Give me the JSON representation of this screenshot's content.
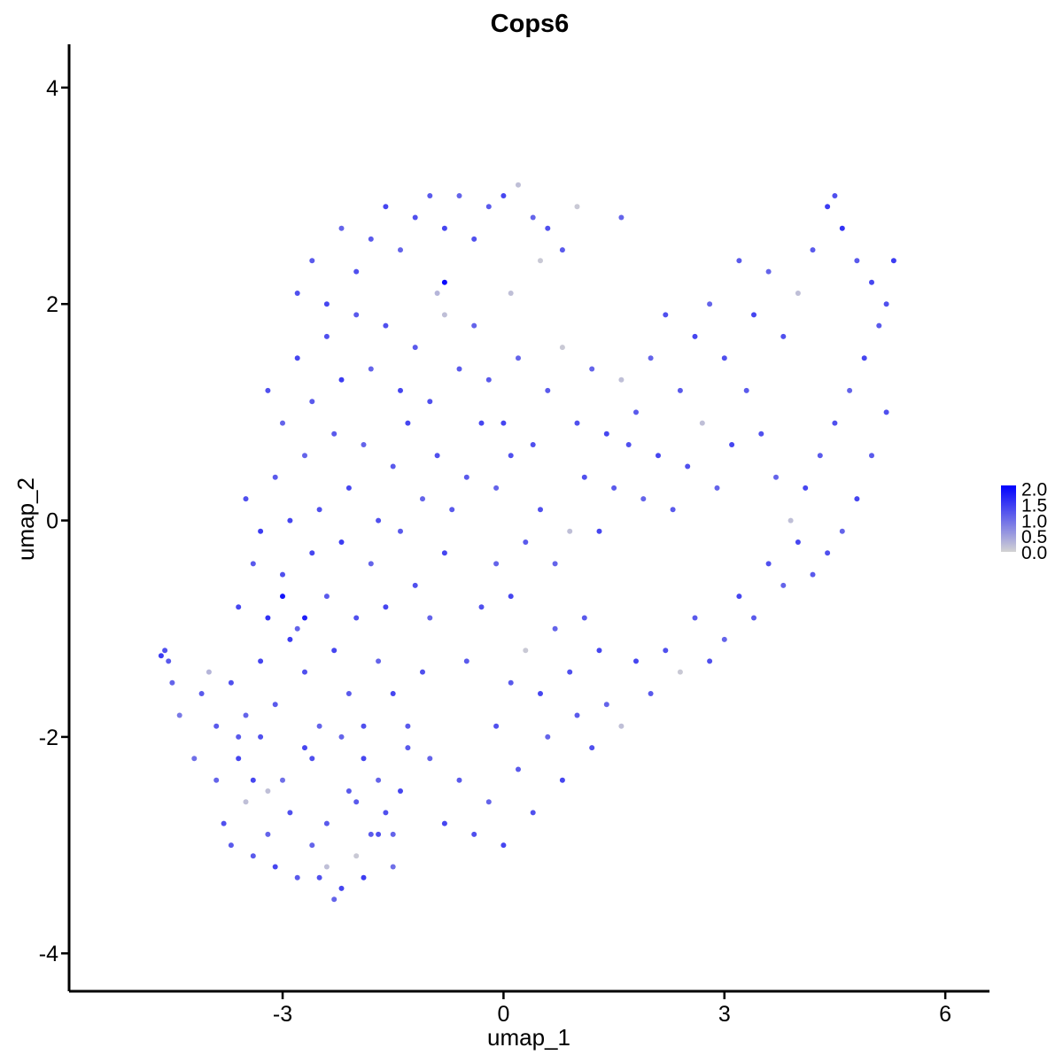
{
  "chart_data": {
    "type": "scatter",
    "title": "Cops6",
    "xlabel": "umap_1",
    "ylabel": "umap_2",
    "xlim": [
      -5.9,
      6.6
    ],
    "ylim": [
      -4.35,
      4.4
    ],
    "x_ticks": [
      -3,
      0,
      3,
      6
    ],
    "x_tick_labels": [
      "-3",
      "0",
      "3",
      "6"
    ],
    "y_ticks": [
      -4,
      -2,
      0,
      2,
      4
    ],
    "y_tick_labels": [
      "-4",
      "-2",
      "0",
      "2",
      "4"
    ],
    "grid": false,
    "color_scale": {
      "low_color": "#d3d3d3",
      "high_color": "#0000ff",
      "min": 0.0,
      "max": 2.1,
      "ticks": [
        0.0,
        0.5,
        1.0,
        1.5,
        2.0
      ],
      "tick_labels": [
        "0.0",
        "0.5",
        "1.0",
        "1.5",
        "2.0"
      ]
    },
    "legend_placement": "right",
    "series": [
      {
        "x_y_expression": [
          [
            -4.6,
            -1.2,
            1.3
          ],
          [
            -4.65,
            -1.25,
            1.5
          ],
          [
            -4.55,
            -1.3,
            1.2
          ],
          [
            -4.5,
            -1.5,
            1.1
          ],
          [
            -4.4,
            -1.8,
            0.9
          ],
          [
            -4.2,
            -2.2,
            1.0
          ],
          [
            -4.1,
            -1.6,
            1.2
          ],
          [
            -4.0,
            -1.4,
            0.3
          ],
          [
            -3.9,
            -2.4,
            1.1
          ],
          [
            -3.8,
            -2.8,
            1.3
          ],
          [
            -3.7,
            -3.0,
            1.2
          ],
          [
            -3.6,
            -2.2,
            1.4
          ],
          [
            -3.5,
            -2.6,
            0.2
          ],
          [
            -3.4,
            -3.1,
            1.2
          ],
          [
            -3.3,
            -2.0,
            1.3
          ],
          [
            -3.2,
            -2.9,
            1.1
          ],
          [
            -3.1,
            -3.2,
            1.4
          ],
          [
            -3.0,
            -2.4,
            1.0
          ],
          [
            -2.9,
            -2.7,
            1.3
          ],
          [
            -2.8,
            -3.3,
            1.2
          ],
          [
            -2.7,
            -2.1,
            1.4
          ],
          [
            -2.6,
            -3.0,
            1.1
          ],
          [
            -2.5,
            -3.3,
            1.3
          ],
          [
            -2.4,
            -2.8,
            1.2
          ],
          [
            -2.3,
            -3.5,
            1.1
          ],
          [
            -2.2,
            -3.4,
            1.4
          ],
          [
            -2.1,
            -2.5,
            1.2
          ],
          [
            -2.0,
            -3.1,
            0.1
          ],
          [
            -1.9,
            -3.3,
            1.5
          ],
          [
            -1.8,
            -2.9,
            1.2
          ],
          [
            -1.7,
            -2.4,
            1.1
          ],
          [
            -1.6,
            -2.7,
            1.3
          ],
          [
            -1.5,
            -3.2,
            1.0
          ],
          [
            -1.4,
            -2.5,
            1.4
          ],
          [
            -1.3,
            -2.1,
            1.2
          ],
          [
            -3.9,
            -1.9,
            1.2
          ],
          [
            -3.7,
            -1.5,
            1.3
          ],
          [
            -3.5,
            -1.8,
            1.1
          ],
          [
            -3.3,
            -1.3,
            1.4
          ],
          [
            -3.1,
            -1.7,
            1.2
          ],
          [
            -2.9,
            -1.1,
            1.5
          ],
          [
            -2.7,
            -1.4,
            1.3
          ],
          [
            -2.5,
            -1.9,
            1.1
          ],
          [
            -2.3,
            -1.2,
            1.4
          ],
          [
            -2.1,
            -1.6,
            1.2
          ],
          [
            -1.9,
            -1.9,
            1.3
          ],
          [
            -1.7,
            -1.3,
            1.1
          ],
          [
            -1.5,
            -1.6,
            1.4
          ],
          [
            -1.3,
            -1.9,
            1.2
          ],
          [
            -1.1,
            -1.4,
            1.3
          ],
          [
            -3.6,
            -0.8,
            1.4
          ],
          [
            -3.4,
            -0.4,
            1.2
          ],
          [
            -3.2,
            -0.9,
            1.6
          ],
          [
            -3.0,
            -0.5,
            1.3
          ],
          [
            -2.8,
            -1.0,
            1.1
          ],
          [
            -2.6,
            -0.3,
            1.4
          ],
          [
            -2.4,
            -0.7,
            1.2
          ],
          [
            -2.2,
            -0.2,
            1.5
          ],
          [
            -2.0,
            -0.9,
            1.3
          ],
          [
            -1.8,
            -0.4,
            1.1
          ],
          [
            -1.6,
            -0.8,
            1.4
          ],
          [
            -1.4,
            -0.1,
            1.2
          ],
          [
            -1.2,
            -0.6,
            1.3
          ],
          [
            -1.0,
            -0.9,
            1.1
          ],
          [
            -0.8,
            -0.3,
            1.4
          ],
          [
            -3.5,
            0.2,
            1.3
          ],
          [
            -3.3,
            -0.1,
            1.5
          ],
          [
            -3.1,
            0.4,
            1.2
          ],
          [
            -2.9,
            0.0,
            1.4
          ],
          [
            -2.7,
            0.6,
            1.1
          ],
          [
            -2.5,
            0.1,
            1.3
          ],
          [
            -2.3,
            0.8,
            1.2
          ],
          [
            -2.1,
            0.3,
            1.4
          ],
          [
            -1.9,
            0.7,
            1.1
          ],
          [
            -1.7,
            0.0,
            1.3
          ],
          [
            -1.5,
            0.5,
            1.2
          ],
          [
            -1.3,
            0.9,
            1.4
          ],
          [
            -1.1,
            0.2,
            1.1
          ],
          [
            -0.9,
            0.6,
            1.3
          ],
          [
            -0.7,
            0.1,
            1.2
          ],
          [
            -3.2,
            1.2,
            1.3
          ],
          [
            -3.0,
            0.9,
            1.1
          ],
          [
            -2.8,
            1.5,
            1.4
          ],
          [
            -2.6,
            1.1,
            1.2
          ],
          [
            -2.4,
            1.7,
            1.3
          ],
          [
            -2.2,
            1.3,
            1.5
          ],
          [
            -2.0,
            1.9,
            1.2
          ],
          [
            -1.8,
            1.4,
            1.1
          ],
          [
            -1.6,
            1.8,
            1.3
          ],
          [
            -1.4,
            1.2,
            1.4
          ],
          [
            -1.2,
            1.6,
            1.2
          ],
          [
            -1.0,
            1.1,
            1.3
          ],
          [
            -0.8,
            1.9,
            0.2
          ],
          [
            -0.6,
            1.4,
            1.2
          ],
          [
            -0.4,
            1.8,
            1.1
          ],
          [
            -2.8,
            2.1,
            1.3
          ],
          [
            -2.6,
            2.4,
            1.2
          ],
          [
            -2.4,
            2.0,
            1.4
          ],
          [
            -2.2,
            2.7,
            1.1
          ],
          [
            -2.0,
            2.3,
            1.3
          ],
          [
            -1.8,
            2.6,
            1.2
          ],
          [
            -1.6,
            2.9,
            1.4
          ],
          [
            -1.4,
            2.5,
            1.1
          ],
          [
            -1.2,
            2.8,
            1.3
          ],
          [
            -1.0,
            3.0,
            1.2
          ],
          [
            -0.8,
            2.7,
            1.4
          ],
          [
            -0.6,
            3.0,
            1.1
          ],
          [
            -0.4,
            2.6,
            1.3
          ],
          [
            -0.2,
            2.9,
            1.2
          ],
          [
            0.0,
            3.0,
            1.4
          ],
          [
            0.2,
            3.1,
            0.2
          ],
          [
            0.4,
            2.8,
            1.1
          ],
          [
            0.6,
            2.7,
            1.3
          ],
          [
            0.8,
            2.5,
            1.2
          ],
          [
            1.0,
            2.9,
            0.1
          ],
          [
            1.6,
            2.8,
            1.1
          ],
          [
            -0.8,
            2.2,
            2.0
          ],
          [
            -0.9,
            2.1,
            0.3
          ],
          [
            0.1,
            2.1,
            0.2
          ],
          [
            0.5,
            2.4,
            0.1
          ],
          [
            -0.2,
            1.3,
            1.2
          ],
          [
            0.0,
            0.9,
            1.4
          ],
          [
            0.2,
            1.5,
            1.1
          ],
          [
            0.4,
            0.7,
            1.3
          ],
          [
            0.6,
            1.2,
            1.2
          ],
          [
            0.8,
            1.6,
            0.1
          ],
          [
            1.0,
            0.9,
            1.3
          ],
          [
            1.2,
            1.4,
            1.1
          ],
          [
            1.4,
            0.8,
            1.4
          ],
          [
            1.6,
            1.3,
            0.2
          ],
          [
            1.8,
            1.0,
            1.2
          ],
          [
            2.0,
            1.5,
            1.1
          ],
          [
            2.2,
            1.9,
            1.3
          ],
          [
            2.4,
            1.2,
            1.2
          ],
          [
            2.6,
            1.7,
            1.4
          ],
          [
            2.8,
            2.0,
            1.1
          ],
          [
            3.0,
            1.5,
            1.3
          ],
          [
            3.2,
            2.4,
            1.2
          ],
          [
            3.4,
            1.9,
            1.4
          ],
          [
            3.6,
            2.3,
            1.1
          ],
          [
            3.8,
            1.7,
            1.3
          ],
          [
            4.0,
            2.1,
            0.2
          ],
          [
            4.2,
            2.5,
            1.2
          ],
          [
            4.4,
            2.9,
            1.5
          ],
          [
            4.5,
            3.0,
            1.3
          ],
          [
            4.6,
            2.7,
            1.6
          ],
          [
            4.8,
            2.4,
            1.2
          ],
          [
            5.0,
            2.2,
            1.4
          ],
          [
            5.2,
            2.0,
            1.3
          ],
          [
            5.3,
            2.4,
            1.5
          ],
          [
            5.1,
            1.8,
            1.2
          ],
          [
            4.9,
            1.5,
            1.4
          ],
          [
            4.7,
            1.2,
            1.1
          ],
          [
            4.5,
            0.9,
            1.3
          ],
          [
            4.3,
            0.6,
            1.2
          ],
          [
            4.1,
            0.3,
            1.4
          ],
          [
            3.9,
            0.0,
            0.2
          ],
          [
            3.7,
            0.4,
            1.1
          ],
          [
            3.5,
            0.8,
            1.3
          ],
          [
            3.3,
            1.2,
            1.2
          ],
          [
            3.1,
            0.7,
            1.4
          ],
          [
            2.9,
            0.3,
            1.1
          ],
          [
            2.7,
            0.9,
            0.2
          ],
          [
            2.5,
            0.5,
            1.3
          ],
          [
            2.3,
            0.1,
            1.2
          ],
          [
            2.1,
            0.6,
            1.4
          ],
          [
            1.9,
            0.2,
            1.1
          ],
          [
            1.7,
            0.7,
            1.3
          ],
          [
            1.5,
            0.3,
            1.2
          ],
          [
            1.3,
            -0.1,
            1.4
          ],
          [
            5.2,
            1.0,
            1.3
          ],
          [
            5.0,
            0.6,
            1.2
          ],
          [
            4.8,
            0.2,
            1.4
          ],
          [
            4.6,
            -0.1,
            1.1
          ],
          [
            4.4,
            -0.3,
            1.3
          ],
          [
            4.2,
            -0.5,
            1.2
          ],
          [
            4.0,
            -0.2,
            1.4
          ],
          [
            3.8,
            -0.6,
            1.1
          ],
          [
            3.6,
            -0.4,
            1.3
          ],
          [
            3.4,
            -0.9,
            1.2
          ],
          [
            3.2,
            -0.7,
            1.4
          ],
          [
            3.0,
            -1.1,
            1.1
          ],
          [
            2.8,
            -1.3,
            1.3
          ],
          [
            2.6,
            -0.9,
            1.2
          ],
          [
            2.4,
            -1.4,
            0.1
          ],
          [
            2.2,
            -1.2,
            1.3
          ],
          [
            2.0,
            -1.6,
            1.2
          ],
          [
            1.8,
            -1.3,
            1.4
          ],
          [
            1.6,
            -1.9,
            0.2
          ],
          [
            1.4,
            -1.7,
            1.1
          ],
          [
            1.2,
            -2.1,
            1.3
          ],
          [
            1.0,
            -1.8,
            1.2
          ],
          [
            0.8,
            -2.4,
            1.4
          ],
          [
            0.6,
            -2.0,
            1.1
          ],
          [
            0.4,
            -2.7,
            1.3
          ],
          [
            0.2,
            -2.3,
            1.2
          ],
          [
            0.0,
            -3.0,
            1.4
          ],
          [
            -0.2,
            -2.6,
            1.1
          ],
          [
            -0.4,
            -2.9,
            1.3
          ],
          [
            -0.6,
            -2.4,
            1.2
          ],
          [
            -0.8,
            -2.8,
            1.4
          ],
          [
            -1.0,
            -2.2,
            1.1
          ],
          [
            -0.1,
            -1.9,
            1.3
          ],
          [
            0.1,
            -1.5,
            1.2
          ],
          [
            0.3,
            -1.2,
            0.1
          ],
          [
            0.5,
            -1.6,
            1.4
          ],
          [
            0.7,
            -1.0,
            1.1
          ],
          [
            0.9,
            -1.4,
            1.3
          ],
          [
            1.1,
            -0.9,
            1.2
          ],
          [
            1.3,
            -1.2,
            1.4
          ],
          [
            -0.5,
            -1.3,
            1.2
          ],
          [
            -0.3,
            -0.8,
            1.3
          ],
          [
            -0.1,
            -0.4,
            1.1
          ],
          [
            0.1,
            -0.7,
            1.4
          ],
          [
            0.3,
            -0.2,
            1.2
          ],
          [
            0.5,
            0.1,
            1.3
          ],
          [
            0.7,
            -0.4,
            1.1
          ],
          [
            0.9,
            -0.1,
            0.2
          ],
          [
            1.1,
            0.4,
            1.3
          ],
          [
            -0.5,
            0.4,
            1.2
          ],
          [
            -0.3,
            0.9,
            1.4
          ],
          [
            -0.1,
            0.3,
            1.1
          ],
          [
            0.1,
            0.6,
            1.3
          ],
          [
            -3.0,
            -0.7,
            1.9
          ],
          [
            -2.7,
            -0.9,
            1.8
          ],
          [
            -3.6,
            -2.0,
            1.2
          ],
          [
            -3.2,
            -2.5,
            0.2
          ],
          [
            -2.6,
            -2.2,
            1.3
          ],
          [
            -2.2,
            -2.0,
            1.1
          ],
          [
            -1.9,
            -2.2,
            1.4
          ],
          [
            -2.4,
            -3.2,
            0.2
          ],
          [
            -2.0,
            -2.6,
            1.2
          ],
          [
            -1.7,
            -2.9,
            1.3
          ],
          [
            -1.5,
            -2.9,
            1.1
          ],
          [
            -3.4,
            -2.4,
            1.4
          ]
        ]
      }
    ]
  }
}
